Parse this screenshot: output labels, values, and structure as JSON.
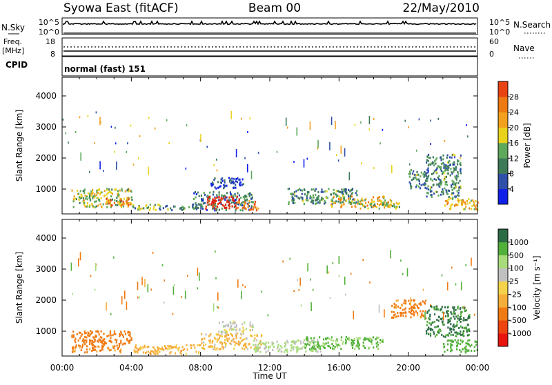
{
  "header": {
    "station": "Syowa East (fitACF)",
    "beam": "Beam 00",
    "date": "22/May/2010"
  },
  "summary_panels": {
    "nsky_label": "N.Sky",
    "nsky_ticks": [
      "10^5",
      "10^0"
    ],
    "nsearch_label": "N.Search",
    "nsearch_ticks": [
      "10^5",
      "10^0"
    ],
    "freq_label_line1": "Freq.",
    "freq_label_line2": "[MHz]",
    "freq_ticks": [
      "18",
      "8"
    ],
    "nave_label": "Nave",
    "nave_ticks": [
      "60",
      "0"
    ],
    "cpid_label": "CPID",
    "cpid_text": "normal (fast) 151"
  },
  "colors": {
    "power_scale": [
      "#1020e8",
      "#2f4fa8",
      "#3e7a58",
      "#5da85a",
      "#e8d21c",
      "#f2a01e",
      "#ee7a14",
      "#e84412",
      "#e01a10"
    ],
    "velocity_scale": [
      "#e8140e",
      "#ee4410",
      "#f07a12",
      "#f6ae3a",
      "#f4d24a",
      "#c0c0c0",
      "#a8dc7a",
      "#52b03a",
      "#2c6c44",
      "#2a4aa8"
    ]
  },
  "chart_data": [
    {
      "type": "heatmap",
      "name": "power",
      "ylabel": "Slant Range [km]",
      "yticks": [
        "1000",
        "2000",
        "3000",
        "4000"
      ],
      "ylim": [
        200,
        4600
      ],
      "xlim_hours": [
        0,
        24
      ],
      "colorbar_label": "Power [dB]",
      "colorbar_ticks": [
        "4",
        "8",
        "12",
        "16",
        "20",
        "24",
        "28"
      ],
      "colorbar_range": [
        0,
        32
      ],
      "regions": [
        {
          "t": [
            0.5,
            4.0
          ],
          "r": [
            400,
            1000
          ],
          "level": 0.45
        },
        {
          "t": [
            2.5,
            4.0
          ],
          "r": [
            450,
            700
          ],
          "level": 0.7
        },
        {
          "t": [
            4.0,
            5.6
          ],
          "r": [
            300,
            500
          ],
          "level": 0.35
        },
        {
          "t": [
            5.5,
            7.5
          ],
          "r": [
            300,
            450
          ],
          "level": 0.3
        },
        {
          "t": [
            7.5,
            11.0
          ],
          "r": [
            300,
            900
          ],
          "level": 0.25
        },
        {
          "t": [
            8.2,
            10.2
          ],
          "r": [
            350,
            750
          ],
          "level": 0.95
        },
        {
          "t": [
            10.0,
            11.3
          ],
          "r": [
            300,
            600
          ],
          "level": 0.75
        },
        {
          "t": [
            8.5,
            10.5
          ],
          "r": [
            1000,
            1350
          ],
          "level": 0.15
        },
        {
          "t": [
            13.0,
            17.0
          ],
          "r": [
            500,
            1000
          ],
          "level": 0.3
        },
        {
          "t": [
            15.5,
            19.0
          ],
          "r": [
            400,
            750
          ],
          "level": 0.55
        },
        {
          "t": [
            17.0,
            19.5
          ],
          "r": [
            350,
            550
          ],
          "level": 0.45
        },
        {
          "t": [
            20.0,
            21.0
          ],
          "r": [
            1000,
            1600
          ],
          "level": 0.3
        },
        {
          "t": [
            21.0,
            23.0
          ],
          "r": [
            700,
            2100
          ],
          "level": 0.3
        },
        {
          "t": [
            22.0,
            24.0
          ],
          "r": [
            300,
            700
          ],
          "level": 0.6
        }
      ]
    },
    {
      "type": "heatmap",
      "name": "velocity",
      "ylabel": "Slant Range [km]",
      "yticks": [
        "1000",
        "2000",
        "3000",
        "4000"
      ],
      "ylim": [
        200,
        4600
      ],
      "xlim_hours": [
        0,
        24
      ],
      "xticks": [
        "00:00",
        "04:00",
        "08:00",
        "12:00",
        "16:00",
        "20:00",
        "00:00"
      ],
      "xlabel": "Time UT",
      "colorbar_label": "Velocity [m s⁻¹]",
      "colorbar_ticks": [
        "1000",
        "500",
        "100",
        "25",
        "-25",
        "-100",
        "-500",
        "-1000"
      ],
      "regions": [
        {
          "t": [
            0.5,
            4.0
          ],
          "r": [
            500,
            1000
          ],
          "v": -300
        },
        {
          "t": [
            0.5,
            3.5
          ],
          "r": [
            300,
            500
          ],
          "v": -120
        },
        {
          "t": [
            4.0,
            8.0
          ],
          "r": [
            250,
            550
          ],
          "v": -70
        },
        {
          "t": [
            8.0,
            11.5
          ],
          "r": [
            400,
            900
          ],
          "v": -60
        },
        {
          "t": [
            9.0,
            11.0
          ],
          "r": [
            900,
            1300
          ],
          "v": 0
        },
        {
          "t": [
            11.0,
            15.0
          ],
          "r": [
            300,
            700
          ],
          "v": 40
        },
        {
          "t": [
            14.0,
            18.5
          ],
          "r": [
            400,
            800
          ],
          "v": 120
        },
        {
          "t": [
            19.0,
            21.0
          ],
          "r": [
            1400,
            2000
          ],
          "v": -150
        },
        {
          "t": [
            21.0,
            23.5
          ],
          "r": [
            800,
            1800
          ],
          "v": 600
        },
        {
          "t": [
            22.0,
            24.0
          ],
          "r": [
            300,
            700
          ],
          "v": 200
        }
      ]
    }
  ]
}
